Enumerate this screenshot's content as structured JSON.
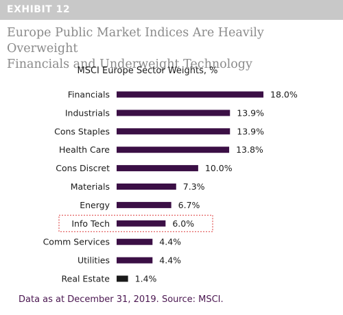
{
  "exhibit": "EXHIBIT 12",
  "headline_line1": "Europe Public Market Indices Are Heavily Overweight",
  "headline_line2": "Financials and Underweight Technology",
  "footnote": "Data as at December 31, 2019. Source: MSCI.",
  "colors": {
    "bar": "#3b0f45",
    "highlight_bar": "#1a1a1a",
    "highlight_box": "#e05050"
  },
  "chart_data": {
    "type": "bar",
    "orientation": "horizontal",
    "title": "MSCI Europe Sector Weights, %",
    "categories": [
      "Financials",
      "Industrials",
      "Cons Staples",
      "Health Care",
      "Cons Discret",
      "Materials",
      "Energy",
      "Info Tech",
      "Comm Services",
      "Utilities",
      "Real Estate"
    ],
    "values": [
      18.0,
      13.9,
      13.9,
      13.8,
      10.0,
      7.3,
      6.7,
      6.0,
      4.4,
      4.4,
      1.4
    ],
    "value_labels": [
      "18.0%",
      "13.9%",
      "13.9%",
      "13.8%",
      "10.0%",
      "7.3%",
      "6.7%",
      "6.0%",
      "4.4%",
      "4.4%",
      "1.4%"
    ],
    "highlighted_category": "Info Tech",
    "dark_category": "Real Estate",
    "xlim": [
      0,
      18.0
    ],
    "grid": false,
    "legend": "none"
  }
}
